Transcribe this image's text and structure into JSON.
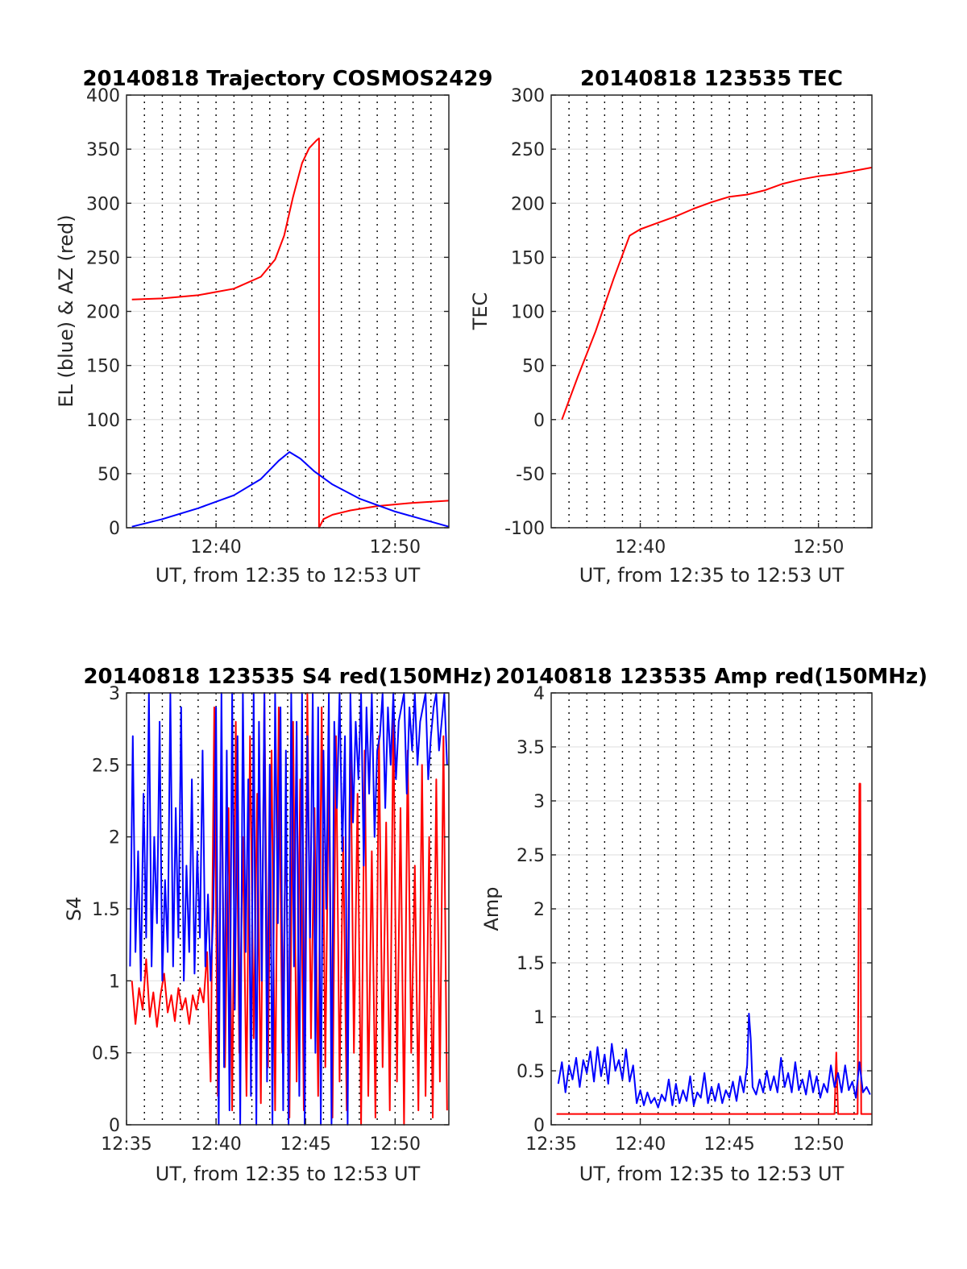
{
  "colors": {
    "az": "#ff0000",
    "el": "#0000ff",
    "grid": "#000000",
    "axis": "#262626"
  },
  "chart_data": [
    {
      "id": "traj",
      "type": "line",
      "title": "20140818 Trajectory COSMOS2429",
      "xlabel": "UT, from 12:35 to 12:53 UT",
      "ylabel": "EL (blue) & AZ (red)",
      "xlim": [
        35,
        53
      ],
      "ylim": [
        0,
        400
      ],
      "yticks": [
        0,
        50,
        100,
        150,
        200,
        250,
        300,
        350,
        400
      ],
      "ytick_labels": [
        "0",
        "50",
        "100",
        "150",
        "200",
        "250",
        "300",
        "350",
        "400"
      ],
      "xticks": [
        40,
        50
      ],
      "xtick_labels": [
        "12:40",
        "12:50"
      ],
      "series": [
        {
          "name": "AZ",
          "color": "#ff0000",
          "x": [
            35.3,
            37,
            39,
            41,
            42.5,
            43.3,
            43.8,
            44.3,
            44.8,
            45.2,
            45.6,
            45.75,
            45.75,
            46,
            46.5,
            47.5,
            49,
            51,
            53
          ],
          "y": [
            211,
            212,
            215,
            221,
            232,
            248,
            270,
            306,
            337,
            351,
            358,
            360,
            0,
            8,
            12,
            16,
            20,
            23,
            25
          ]
        },
        {
          "name": "EL",
          "color": "#0000ff",
          "x": [
            35.3,
            37,
            39,
            41,
            42.5,
            43.5,
            44.1,
            44.7,
            45.5,
            46.5,
            48,
            50,
            51.5,
            53
          ],
          "y": [
            1,
            8,
            18,
            30,
            45,
            62,
            70,
            64,
            52,
            40,
            27,
            15,
            8,
            1
          ]
        }
      ]
    },
    {
      "id": "tec",
      "type": "line",
      "title": "20140818 123535 TEC",
      "xlabel": "UT, from 12:35 to 12:53 UT",
      "ylabel": "TEC",
      "xlim": [
        35,
        53
      ],
      "ylim": [
        -100,
        300
      ],
      "yticks": [
        -100,
        -50,
        0,
        50,
        100,
        150,
        200,
        250,
        300
      ],
      "ytick_labels": [
        "-100",
        "-50",
        "0",
        "50",
        "100",
        "150",
        "200",
        "250",
        "300"
      ],
      "xticks": [
        40,
        50
      ],
      "xtick_labels": [
        "12:40",
        "12:50"
      ],
      "series": [
        {
          "name": "TEC",
          "color": "#ff0000",
          "x": [
            35.6,
            36.5,
            37.5,
            38.5,
            39.4,
            40,
            41,
            42,
            43,
            44,
            45,
            46,
            47,
            48,
            49,
            50,
            51,
            52,
            53
          ],
          "y": [
            0,
            40,
            82,
            130,
            170,
            176,
            182,
            188,
            195,
            201,
            206,
            208,
            212,
            218,
            222,
            225,
            227,
            230,
            233
          ]
        }
      ]
    },
    {
      "id": "s4",
      "type": "line",
      "title": "20140818 123535 S4 red(150MHz)",
      "xlabel": "UT, from 12:35 to 12:53 UT",
      "ylabel": "S4",
      "xlim": [
        35,
        53
      ],
      "ylim": [
        0,
        3
      ],
      "yticks": [
        0,
        0.5,
        1,
        1.5,
        2,
        2.5,
        3
      ],
      "ytick_labels": [
        "0",
        "0.5",
        "1",
        "1.5",
        "2",
        "2.5",
        "3"
      ],
      "xticks": [
        35,
        40,
        45,
        50
      ],
      "xtick_labels": [
        "12:35",
        "12:40",
        "12:45",
        "12:50"
      ],
      "series": [
        {
          "name": "S4 red (150MHz)",
          "color": "#ff0000",
          "x": [
            35.3,
            35.5,
            35.7,
            35.9,
            36.1,
            36.3,
            36.5,
            36.7,
            36.9,
            37.1,
            37.3,
            37.5,
            37.7,
            37.9,
            38.1,
            38.3,
            38.5,
            38.7,
            38.9,
            39.1,
            39.3,
            39.5,
            39.7,
            39.9,
            40.1,
            40.3,
            40.5,
            40.7,
            40.9,
            41.1,
            41.3,
            41.5,
            41.7,
            41.9,
            42.1,
            42.3,
            42.5,
            42.7,
            42.9,
            43.1,
            43.3,
            43.5,
            43.7,
            43.9,
            44.1,
            44.3,
            44.5,
            44.7,
            44.9,
            45.1,
            45.3,
            45.5,
            45.7,
            45.9,
            46.1,
            46.3,
            46.5,
            46.7,
            46.9,
            47.1,
            47.3,
            47.5,
            47.7,
            47.9,
            48.1,
            48.3,
            48.5,
            48.7,
            48.9,
            49.1,
            49.3,
            49.5,
            49.7,
            49.9,
            50.1,
            50.3,
            50.5,
            50.7,
            50.9,
            51.1,
            51.3,
            51.5,
            51.7,
            51.9,
            52.1,
            52.3,
            52.5,
            52.7,
            52.9
          ],
          "y": [
            1.0,
            0.7,
            0.95,
            0.8,
            1.15,
            0.75,
            0.92,
            0.68,
            0.9,
            1.05,
            0.78,
            0.9,
            0.72,
            0.95,
            0.8,
            0.88,
            0.7,
            0.9,
            0.8,
            0.95,
            0.85,
            1.2,
            0.3,
            2.9,
            0.2,
            2.5,
            0.4,
            2.2,
            0.1,
            2.8,
            0.5,
            2.0,
            0.2,
            2.7,
            0.6,
            2.3,
            0.15,
            3.0,
            0.4,
            2.6,
            0.1,
            2.9,
            0.5,
            2.1,
            0.05,
            2.8,
            0.3,
            2.4,
            0.1,
            3.0,
            0.6,
            2.2,
            0.2,
            2.9,
            0.4,
            2.5,
            0.05,
            2.7,
            0.3,
            2.0,
            0.1,
            2.8,
            0.5,
            2.3,
            0.0,
            2.6,
            0.2,
            1.9,
            0.05,
            2.7,
            0.4,
            2.1,
            0.1,
            2.9,
            0.3,
            2.2,
            0.0,
            2.6,
            0.5,
            1.8,
            0.1,
            2.5,
            0.2,
            2.0,
            0.05,
            2.4,
            0.3,
            2.7,
            0.1
          ]
        },
        {
          "name": "S4 blue",
          "color": "#0000ff",
          "x": [
            35.2,
            35.35,
            35.5,
            35.65,
            35.8,
            35.95,
            36.1,
            36.25,
            36.4,
            36.55,
            36.7,
            36.85,
            37.0,
            37.15,
            37.3,
            37.45,
            37.6,
            37.75,
            37.9,
            38.05,
            38.2,
            38.35,
            38.5,
            38.65,
            38.8,
            38.95,
            39.1,
            39.25,
            39.4,
            39.55,
            39.7,
            39.85,
            40.0,
            40.15,
            40.3,
            40.45,
            40.6,
            40.75,
            40.9,
            41.05,
            41.2,
            41.35,
            41.5,
            41.65,
            41.8,
            41.95,
            42.1,
            42.25,
            42.4,
            42.55,
            42.7,
            42.85,
            43.0,
            43.15,
            43.3,
            43.45,
            43.6,
            43.75,
            43.9,
            44.05,
            44.2,
            44.35,
            44.5,
            44.65,
            44.8,
            44.95,
            45.1,
            45.25,
            45.4,
            45.55,
            45.7,
            45.85,
            46.0,
            46.15,
            46.3,
            46.45,
            46.6,
            46.75,
            46.9,
            47.05,
            47.2,
            47.35,
            47.5,
            47.65,
            47.8,
            47.95,
            48.1,
            48.25,
            48.4,
            48.55,
            48.7,
            48.85,
            49.0,
            49.15,
            49.3,
            49.45,
            49.6,
            49.75,
            49.9,
            50.05,
            50.2,
            50.35,
            50.5,
            50.65,
            50.8,
            50.95,
            51.1,
            51.25,
            51.4,
            51.55,
            51.7,
            51.85,
            52.0,
            52.15,
            52.3,
            52.45,
            52.6,
            52.75,
            52.9
          ],
          "y": [
            1.1,
            2.7,
            1.2,
            1.9,
            1.0,
            2.3,
            1.3,
            3.0,
            1.1,
            2.0,
            1.4,
            2.8,
            1.0,
            1.7,
            1.2,
            3.0,
            1.1,
            2.2,
            1.3,
            2.9,
            1.0,
            1.8,
            1.2,
            2.4,
            1.05,
            1.9,
            1.3,
            2.6,
            1.1,
            1.6,
            1.0,
            1.5,
            2.9,
            0.0,
            3.0,
            0.4,
            2.6,
            0.1,
            3.0,
            0.8,
            2.7,
            0.0,
            3.0,
            1.2,
            2.4,
            0.2,
            3.0,
            0.0,
            2.8,
            1.0,
            3.0,
            0.3,
            2.5,
            0.0,
            3.0,
            1.4,
            2.9,
            0.1,
            2.6,
            0.0,
            3.0,
            1.1,
            2.8,
            0.2,
            3.0,
            0.0,
            2.7,
            1.3,
            3.0,
            0.5,
            2.9,
            0.0,
            2.6,
            1.5,
            3.0,
            0.0,
            2.8,
            2.2,
            3.0,
            1.9,
            2.7,
            0.0,
            3.0,
            2.1,
            2.8,
            2.4,
            3.0,
            1.8,
            2.9,
            2.3,
            3.0,
            2.0,
            2.6,
            2.7,
            3.0,
            2.2,
            2.9,
            2.5,
            3.0,
            2.4,
            2.8,
            2.9,
            3.0,
            2.3,
            2.9,
            2.6,
            3.0,
            2.5,
            2.8,
            2.9,
            3.0,
            2.4,
            2.7,
            2.9,
            3.0,
            2.6,
            2.8,
            3.0,
            2.5
          ]
        }
      ]
    },
    {
      "id": "amp",
      "type": "line",
      "title": "20140818 123535 Amp red(150MHz)",
      "xlabel": "UT, from 12:35 to 12:53 UT",
      "ylabel": "Amp",
      "xlim": [
        35,
        53
      ],
      "ylim": [
        0,
        4
      ],
      "yticks": [
        0,
        0.5,
        1,
        1.5,
        2,
        2.5,
        3,
        3.5,
        4
      ],
      "ytick_labels": [
        "0",
        "0.5",
        "1",
        "1.5",
        "2",
        "2.5",
        "3",
        "3.5",
        "4"
      ],
      "xticks": [
        35,
        40,
        45,
        50
      ],
      "xtick_labels": [
        "12:35",
        "12:40",
        "12:45",
        "12:50"
      ],
      "series": [
        {
          "name": "Amp red (150MHz)",
          "color": "#ff0000",
          "x": [
            35.3,
            50.9,
            51.0,
            51.1,
            51.2,
            52.2,
            52.3,
            52.35,
            52.4,
            52.5,
            53.0
          ],
          "y": [
            0.1,
            0.1,
            0.67,
            0.1,
            0.1,
            0.1,
            3.16,
            3.16,
            0.1,
            0.1,
            0.1
          ]
        },
        {
          "name": "Amp blue",
          "color": "#0000ff",
          "x": [
            35.4,
            35.6,
            35.8,
            36.0,
            36.2,
            36.4,
            36.6,
            36.8,
            37.0,
            37.2,
            37.4,
            37.6,
            37.8,
            38.0,
            38.2,
            38.4,
            38.6,
            38.8,
            39.0,
            39.2,
            39.4,
            39.6,
            39.8,
            40.0,
            40.2,
            40.4,
            40.6,
            40.8,
            41.0,
            41.2,
            41.4,
            41.6,
            41.8,
            42.0,
            42.2,
            42.4,
            42.6,
            42.8,
            43.0,
            43.2,
            43.4,
            43.6,
            43.8,
            44.0,
            44.2,
            44.4,
            44.6,
            44.8,
            45.0,
            45.2,
            45.4,
            45.6,
            45.8,
            46.0,
            46.1,
            46.2,
            46.3,
            46.5,
            46.7,
            46.9,
            47.1,
            47.3,
            47.5,
            47.7,
            47.9,
            48.1,
            48.3,
            48.5,
            48.7,
            48.9,
            49.1,
            49.3,
            49.5,
            49.7,
            49.9,
            50.1,
            50.3,
            50.5,
            50.7,
            50.9,
            51.1,
            51.3,
            51.5,
            51.7,
            51.9,
            52.1,
            52.3,
            52.5,
            52.7,
            52.9
          ],
          "y": [
            0.38,
            0.58,
            0.3,
            0.55,
            0.42,
            0.62,
            0.35,
            0.6,
            0.48,
            0.68,
            0.4,
            0.72,
            0.45,
            0.65,
            0.38,
            0.75,
            0.5,
            0.6,
            0.42,
            0.7,
            0.4,
            0.55,
            0.2,
            0.32,
            0.18,
            0.3,
            0.2,
            0.25,
            0.16,
            0.28,
            0.22,
            0.42,
            0.18,
            0.38,
            0.2,
            0.32,
            0.22,
            0.45,
            0.18,
            0.3,
            0.25,
            0.48,
            0.2,
            0.35,
            0.22,
            0.38,
            0.2,
            0.32,
            0.25,
            0.4,
            0.22,
            0.45,
            0.3,
            0.55,
            1.03,
            0.8,
            0.35,
            0.28,
            0.42,
            0.3,
            0.5,
            0.32,
            0.45,
            0.3,
            0.62,
            0.35,
            0.48,
            0.3,
            0.58,
            0.32,
            0.42,
            0.28,
            0.5,
            0.3,
            0.45,
            0.25,
            0.38,
            0.3,
            0.55,
            0.35,
            0.48,
            0.3,
            0.55,
            0.32,
            0.4,
            0.25,
            0.58,
            0.3,
            0.35,
            0.28
          ]
        }
      ]
    }
  ]
}
